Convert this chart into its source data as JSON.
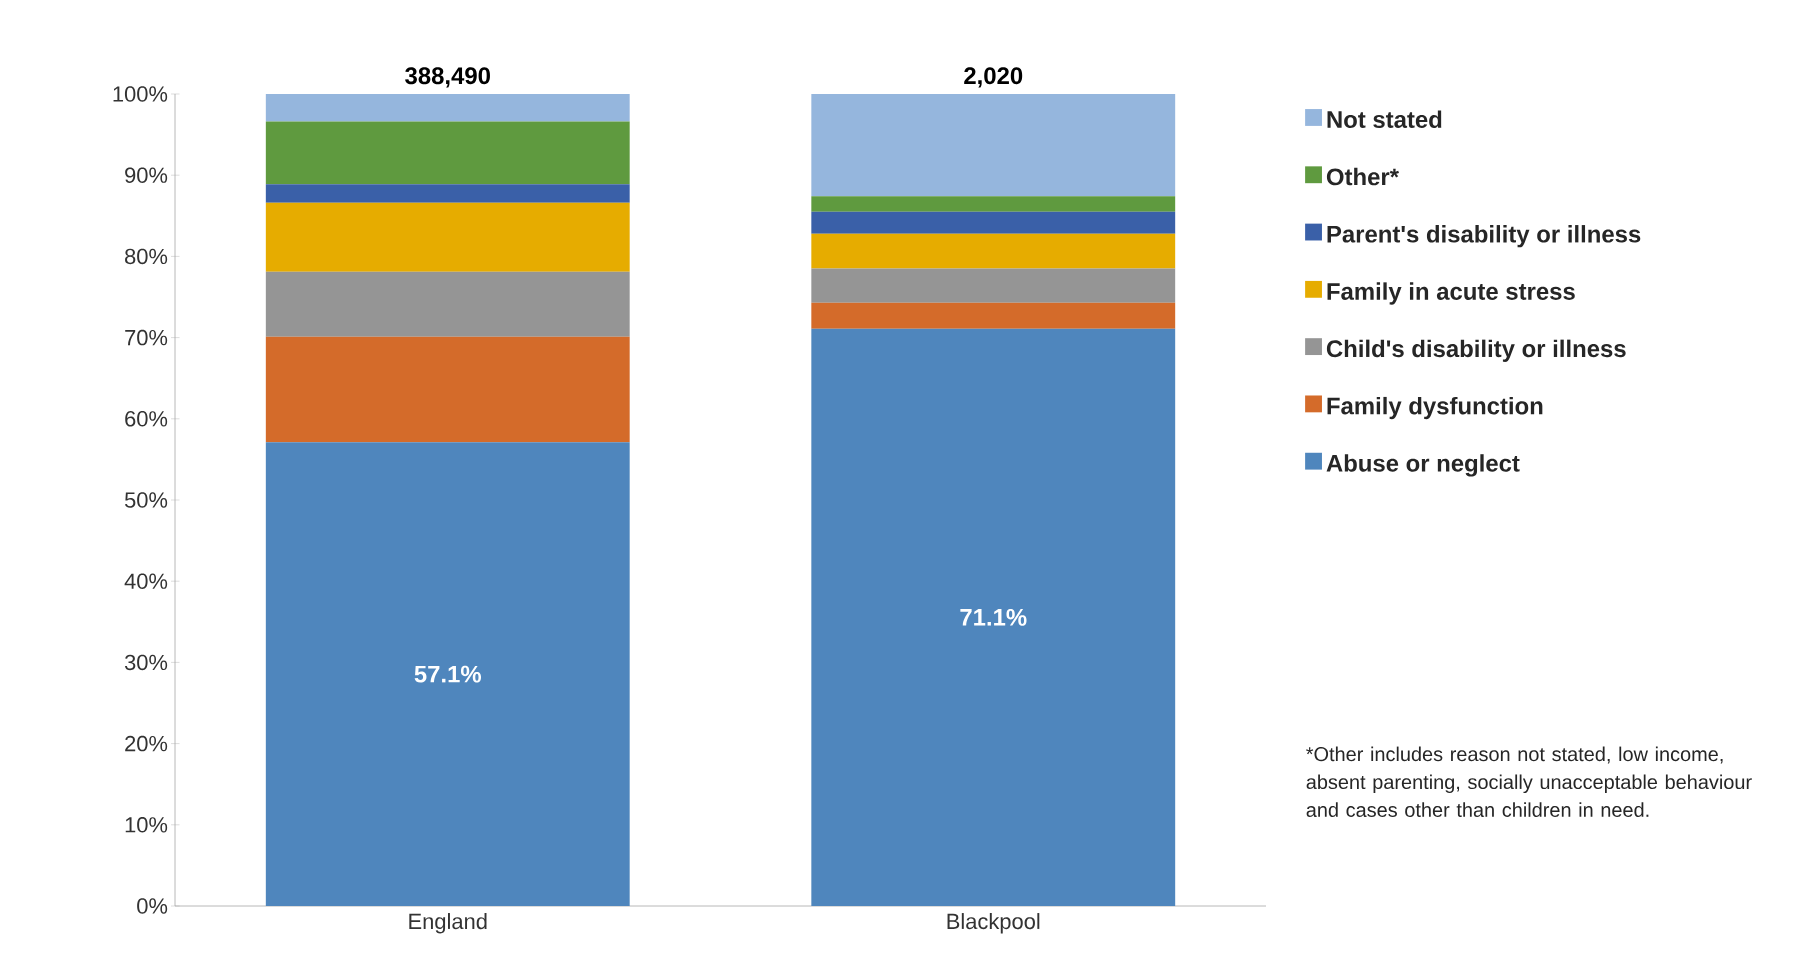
{
  "chart_data": {
    "type": "bar",
    "stacked": true,
    "categories": [
      "England",
      "Blackpool"
    ],
    "series": [
      {
        "name": "Abuse or neglect",
        "color": "#4f86bd",
        "values": [
          57.1,
          71.1
        ],
        "value_labels": [
          "57.1%",
          "71.1%"
        ]
      },
      {
        "name": "Family dysfunction",
        "color": "#d46b2a",
        "values": [
          13.0,
          3.2
        ]
      },
      {
        "name": "Child's disability or illness",
        "color": "#959595",
        "values": [
          8.0,
          4.2
        ]
      },
      {
        "name": "Family in acute stress",
        "color": "#e6ac00",
        "values": [
          8.5,
          4.3
        ]
      },
      {
        "name": "Parent's disability or illness",
        "color": "#3a60a8",
        "values": [
          2.3,
          2.7
        ]
      },
      {
        "name": "Other*",
        "color": "#5f9a3f",
        "values": [
          7.7,
          1.9
        ]
      },
      {
        "name": "Not stated",
        "color": "#95b6dd",
        "values": [
          3.4,
          12.6
        ]
      }
    ],
    "ylim": [
      0,
      100
    ],
    "yticks": [
      {
        "value": 0,
        "label": "0%"
      },
      {
        "value": 10,
        "label": "10%"
      },
      {
        "value": 20,
        "label": "20%"
      },
      {
        "value": 30,
        "label": "30%"
      },
      {
        "value": 40,
        "label": "40%"
      },
      {
        "value": 50,
        "label": "50%"
      },
      {
        "value": 60,
        "label": "60%"
      },
      {
        "value": 70,
        "label": "70%"
      },
      {
        "value": 80,
        "label": "80%"
      },
      {
        "value": 90,
        "label": "90%"
      },
      {
        "value": 100,
        "label": "100%"
      }
    ],
    "grid": false,
    "legend": "right",
    "annotations": [
      {
        "text": "388,490",
        "x": "England",
        "y": 100
      },
      {
        "text": "2,020",
        "x": "Blackpool",
        "y": 100
      },
      "*Other includes reason not stated, low income, absent parenting, socially unacceptable behaviour and cases other than children in need."
    ]
  }
}
